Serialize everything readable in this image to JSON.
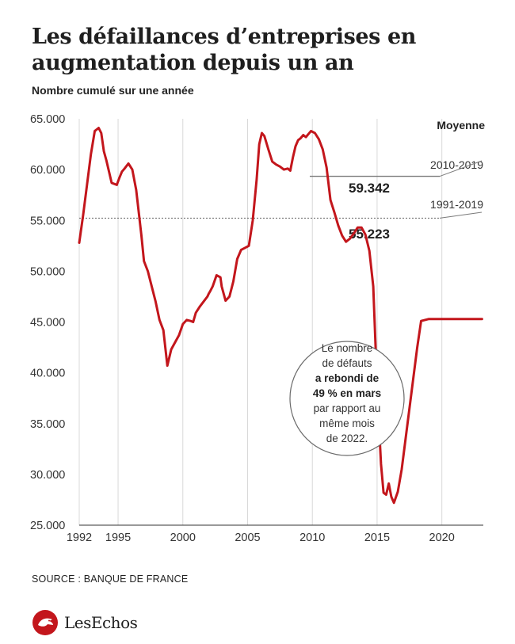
{
  "header": {
    "title": "Les défaillances d’entreprises en augmentation depuis un an",
    "subtitle": "Nombre cumulé sur une année"
  },
  "footer": {
    "source": "SOURCE : BANQUE DE FRANCE",
    "logo_text": "LesEchos"
  },
  "callout": {
    "line1": "Le nombre",
    "line2": "de défauts",
    "line3_bold": "a rebondi de",
    "line4_bold": "49 % en mars",
    "line5": "par rapport au",
    "line6": "même mois",
    "line7": "de 2022."
  },
  "colors": {
    "line": "#c3161c",
    "text": "#222222",
    "grid": "#d9d9d9"
  },
  "chart_data": {
    "type": "line",
    "title": "Les défaillances d’entreprises en augmentation depuis un an",
    "subtitle": "Nombre cumulé sur une année",
    "xlabel": "",
    "ylabel": "",
    "xlim": [
      1992,
      2023.2
    ],
    "ylim": [
      25000,
      65000
    ],
    "y_ticks": [
      25000,
      30000,
      35000,
      40000,
      45000,
      50000,
      55000,
      60000,
      65000
    ],
    "y_tick_labels": [
      "25.000",
      "30.000",
      "35.000",
      "40.000",
      "45.000",
      "50.000",
      "55.000",
      "60.000",
      "65.000"
    ],
    "x_ticks": [
      1992,
      1995,
      2000,
      2005,
      2010,
      2015,
      2020
    ],
    "x_tick_labels": [
      "1992",
      "1995",
      "2000",
      "2005",
      "2010",
      "2015",
      "2020"
    ],
    "grid": "vertical",
    "series": [
      {
        "name": "",
        "color": "#c3161c",
        "x": [
          1992.0,
          1992.3,
          1992.6,
          1992.9,
          1993.2,
          1993.5,
          1993.7,
          1993.9,
          1994.1,
          1994.3,
          1994.5,
          1994.7,
          1994.9,
          1995.1,
          1995.3,
          1995.5,
          1995.8,
          1996.1,
          1996.4,
          1996.8,
          1997.0,
          1997.3,
          1997.6,
          1997.9,
          1998.2,
          1998.5,
          1998.8,
          1999.1,
          1999.4,
          1999.7,
          2000.0,
          2000.3,
          2000.6,
          2000.8,
          2001.0,
          2001.1,
          2001.3,
          2001.6,
          2001.9,
          2002.0,
          2002.1,
          2002.3,
          2002.6,
          2002.9,
          2003.0,
          2003.3,
          2003.6,
          2003.9,
          2004.2,
          2004.5,
          2004.8,
          2005.1,
          2005.4,
          2005.7,
          2005.9,
          2006.1,
          2006.3,
          2006.6,
          2006.9,
          2007.2,
          2007.5,
          2007.8,
          2008.1,
          2008.3,
          2008.5,
          2008.7,
          2008.9,
          2009.1,
          2009.3,
          2009.5,
          2009.7,
          2009.9,
          2010.2,
          2010.5,
          2010.8,
          2011.1,
          2011.4,
          2011.7,
          2012.0,
          2012.3,
          2012.6,
          2012.9,
          2013.2,
          2013.5,
          2013.8,
          2014.1,
          2014.4,
          2014.7,
          2014.9,
          2015.1,
          2015.3,
          2015.5,
          2015.7,
          2015.9,
          2016.1,
          2016.3,
          2016.6,
          2016.9,
          2017.2,
          2017.5,
          2017.8,
          2018.1,
          2018.4,
          2018.7,
          2019.0,
          2019.3,
          2019.6,
          2019.9,
          2020.1,
          2020.3,
          2020.5,
          2020.7,
          2020.9,
          2021.1,
          2021.3,
          2021.5,
          2021.7,
          2021.9,
          2022.1,
          2022.3,
          2022.5,
          2022.7,
          2022.9,
          2023.1
        ],
        "y": [
          52800,
          55500,
          58500,
          61500,
          63800,
          64100,
          63600,
          61800,
          60900,
          59800,
          58700,
          58600,
          58500,
          59200,
          59800,
          60100,
          60600,
          60000,
          58000,
          53500,
          51000,
          50000,
          48500,
          47000,
          45200,
          44200,
          40700,
          42300,
          43000,
          43700,
          44800,
          45200,
          45100,
          45000,
          45900,
          46100,
          46500,
          47000,
          47500,
          47800,
          48000,
          48500,
          49600,
          49400,
          48500,
          47100,
          47500,
          49000,
          51200,
          52100,
          52300,
          52500,
          55000,
          59000,
          62500,
          63600,
          63300,
          62000,
          60800,
          60500,
          60300,
          60000,
          60100,
          59900,
          61200,
          62300,
          62900,
          63100,
          63400,
          63200,
          63500,
          63800,
          63600,
          63000,
          62000,
          60200,
          57000,
          55800,
          54500,
          53500,
          52900,
          53200,
          53700,
          54300,
          54300,
          53600,
          52000,
          48500,
          42000,
          36000,
          31000,
          28200,
          28000,
          29100,
          27800,
          27200,
          28300,
          30500,
          33500,
          36500,
          39500,
          42500,
          45100,
          45200,
          45300,
          45300,
          45300,
          45300,
          45300,
          45300,
          45300,
          45300,
          45300,
          45300,
          45300,
          45300,
          45300,
          45300,
          45300,
          45300,
          45300,
          45300,
          45300,
          45300
        ]
      }
    ],
    "averages": {
      "legend_title": "Moyenne",
      "items": [
        {
          "label": "2010-2019",
          "value": 59342,
          "value_label": "59.342",
          "x_start": 2009.8
        },
        {
          "label": "1991-2019",
          "value": 55223,
          "value_label": "55.223",
          "x_start": 1992
        }
      ]
    }
  }
}
